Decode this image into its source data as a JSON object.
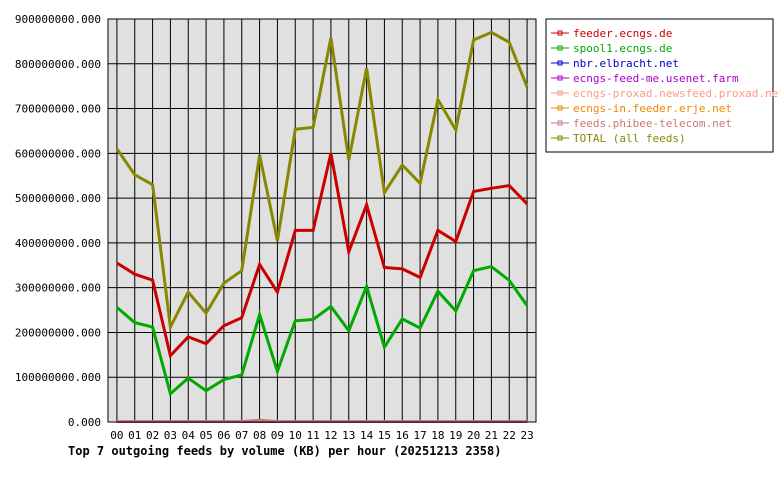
{
  "chart_data": {
    "type": "line",
    "title": "Top 7 outgoing feeds by volume (KB) per hour (20251213 2358)",
    "xlabel": "",
    "ylabel": "",
    "categories": [
      "00",
      "01",
      "02",
      "03",
      "04",
      "05",
      "06",
      "07",
      "08",
      "09",
      "10",
      "11",
      "12",
      "13",
      "14",
      "15",
      "16",
      "17",
      "18",
      "19",
      "20",
      "21",
      "22",
      "23"
    ],
    "ylim": [
      0,
      900000000
    ],
    "yticks": [
      0,
      100000000,
      200000000,
      300000000,
      400000000,
      500000000,
      600000000,
      700000000,
      800000000,
      900000000
    ],
    "ytick_labels": [
      "0.000",
      "100000000.000",
      "200000000.000",
      "300000000.000",
      "400000000.000",
      "500000000.000",
      "600000000.000",
      "700000000.000",
      "800000000.000",
      "900000000.000"
    ],
    "grid": true,
    "legend_position": "right",
    "series": [
      {
        "name": "feeder.ecngs.de",
        "color": "#cc0000",
        "values": [
          355000000,
          330000000,
          317000000,
          148000000,
          190000000,
          175000000,
          215000000,
          233000000,
          352000000,
          290000000,
          428000000,
          428000000,
          600000000,
          380000000,
          485000000,
          345000000,
          342000000,
          323000000,
          428000000,
          403000000,
          515000000,
          522000000,
          528000000,
          487000000
        ]
      },
      {
        "name": "spool1.ecngs.de",
        "color": "#00aa00",
        "values": [
          256000000,
          222000000,
          212000000,
          63000000,
          98000000,
          70000000,
          95000000,
          105000000,
          240000000,
          113000000,
          226000000,
          229000000,
          258000000,
          204000000,
          303000000,
          167000000,
          230000000,
          210000000,
          292000000,
          248000000,
          338000000,
          347000000,
          316000000,
          260000000
        ]
      },
      {
        "name": "nbr.elbracht.net",
        "color": "#0000cc",
        "values": [
          500000,
          500000,
          500000,
          500000,
          500000,
          500000,
          500000,
          500000,
          500000,
          500000,
          500000,
          500000,
          500000,
          500000,
          500000,
          500000,
          500000,
          500000,
          500000,
          500000,
          500000,
          500000,
          500000,
          500000
        ]
      },
      {
        "name": "ecngs-feed-me.usenet.farm",
        "color": "#aa00cc",
        "values": [
          300000,
          300000,
          300000,
          300000,
          300000,
          300000,
          300000,
          300000,
          300000,
          300000,
          300000,
          300000,
          300000,
          300000,
          300000,
          300000,
          300000,
          300000,
          300000,
          300000,
          300000,
          300000,
          300000,
          300000
        ]
      },
      {
        "name": "ecngs-proxad.newsfeed.proxad.net",
        "color": "#ff9988",
        "values": [
          1500000,
          1500000,
          1500000,
          1500000,
          1500000,
          1500000,
          1500000,
          1500000,
          4000000,
          1500000,
          1500000,
          1500000,
          1500000,
          1500000,
          1500000,
          1500000,
          1500000,
          1500000,
          1500000,
          1500000,
          1500000,
          1500000,
          1500000,
          1500000
        ]
      },
      {
        "name": "ecngs-in.feeder.erje.net",
        "color": "#ee8800",
        "values": [
          1000000,
          1000000,
          1000000,
          1000000,
          1000000,
          1000000,
          1000000,
          1000000,
          3000000,
          1000000,
          1000000,
          1000000,
          1000000,
          1000000,
          1000000,
          1000000,
          1000000,
          1000000,
          1000000,
          1000000,
          1000000,
          1000000,
          1000000,
          1000000
        ]
      },
      {
        "name": "feeds.phibee-telecom.net",
        "color": "#cc7777",
        "values": [
          2000000,
          2000000,
          2000000,
          2000000,
          2000000,
          2000000,
          2000000,
          2000000,
          5000000,
          2000000,
          2000000,
          2000000,
          2000000,
          2000000,
          2000000,
          2000000,
          2000000,
          2000000,
          2000000,
          2000000,
          2000000,
          2000000,
          2000000,
          2000000
        ]
      },
      {
        "name": "TOTAL (all feeds)",
        "color": "#888800",
        "values": [
          610000000,
          552000000,
          530000000,
          212000000,
          290000000,
          243000000,
          310000000,
          338000000,
          596000000,
          405000000,
          654000000,
          658000000,
          858000000,
          585000000,
          790000000,
          512000000,
          574000000,
          533000000,
          720000000,
          652000000,
          853000000,
          870000000,
          848000000,
          748000000
        ]
      }
    ]
  }
}
